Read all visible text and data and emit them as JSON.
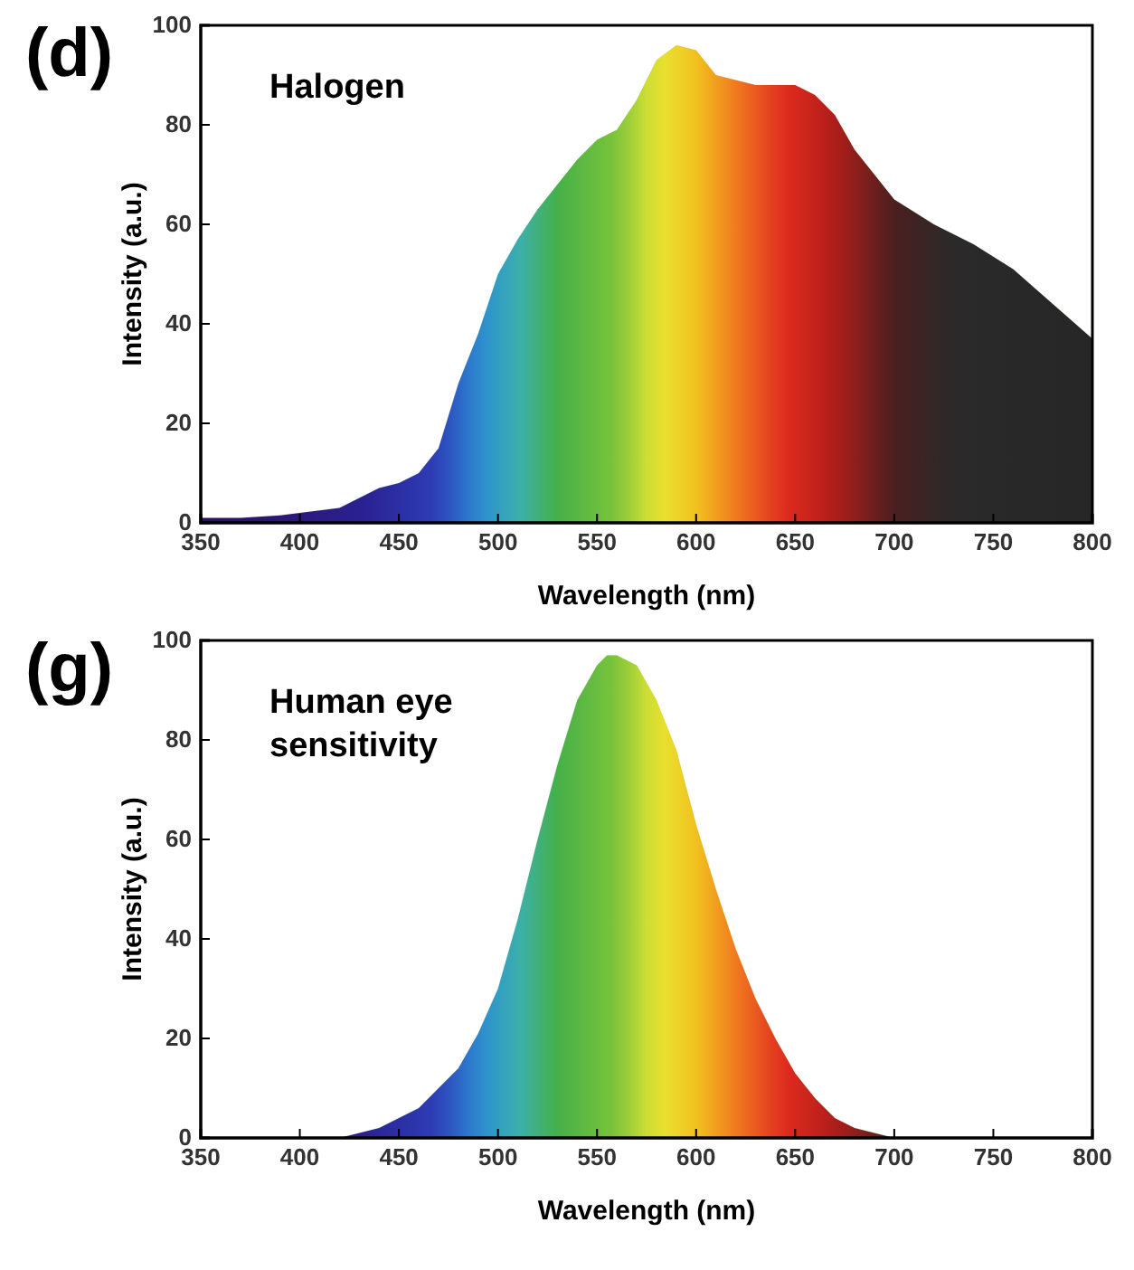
{
  "chart_data": [
    {
      "type": "area",
      "title": "(d)",
      "annotations": [
        "Halogen"
      ],
      "xlabel": "Wavelength (nm)",
      "ylabel": "Intensity (a.u.)",
      "xlim": [
        350,
        800
      ],
      "xticks": [
        350,
        400,
        450,
        500,
        550,
        600,
        650,
        700,
        750,
        800
      ],
      "ylim": [
        0,
        100
      ],
      "yticks": [
        0,
        20,
        40,
        60,
        80,
        100
      ],
      "x": [
        350,
        370,
        390,
        400,
        420,
        430,
        440,
        450,
        460,
        470,
        480,
        490,
        500,
        510,
        520,
        530,
        540,
        550,
        560,
        570,
        580,
        590,
        600,
        610,
        620,
        630,
        640,
        650,
        660,
        670,
        680,
        690,
        700,
        720,
        740,
        760,
        780,
        800
      ],
      "series": [
        {
          "color": "#6abf3a",
          "values": [
            1,
            1,
            1.5,
            2,
            3,
            5,
            7,
            8,
            10,
            15,
            28,
            38,
            50,
            57,
            63,
            68,
            73,
            77,
            79,
            85,
            93,
            96,
            95,
            90,
            89,
            88,
            88,
            88,
            86,
            82,
            75,
            70,
            65,
            60,
            56,
            51,
            44,
            37
          ]
        }
      ]
    },
    {
      "type": "area",
      "title": "(g)",
      "annotations": [
        "Human eye sensitivity"
      ],
      "xlabel": "Wavelength (nm)",
      "ylabel": "Intensity (a.u.)",
      "xlim": [
        350,
        800
      ],
      "xticks": [
        350,
        400,
        450,
        500,
        550,
        600,
        650,
        700,
        750,
        800
      ],
      "ylim": [
        0,
        100
      ],
      "yticks": [
        0,
        20,
        40,
        60,
        80,
        100
      ],
      "x": [
        420,
        430,
        440,
        450,
        460,
        470,
        480,
        490,
        500,
        510,
        520,
        530,
        540,
        550,
        555,
        560,
        570,
        580,
        590,
        600,
        610,
        620,
        630,
        640,
        650,
        660,
        670,
        680,
        690,
        700
      ],
      "series": [
        {
          "color": "#6abf3a",
          "values": [
            0,
            1,
            2,
            4,
            6,
            10,
            14,
            21,
            30,
            44,
            60,
            75,
            88,
            95,
            97,
            97,
            95,
            88,
            78,
            63,
            50,
            38,
            28,
            20,
            13,
            8,
            4,
            2,
            1,
            0
          ]
        }
      ]
    }
  ]
}
